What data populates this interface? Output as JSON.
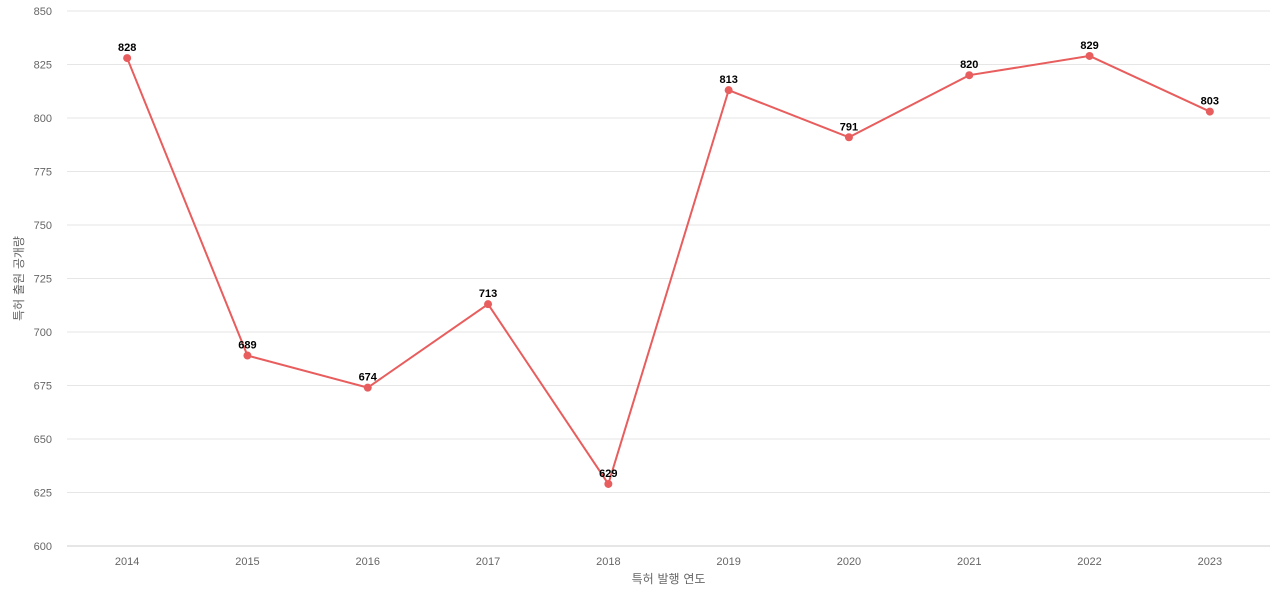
{
  "chart_data": {
    "type": "line",
    "title": "",
    "xlabel": "특허 발행 연도",
    "ylabel": "특허 출원 공개량",
    "categories": [
      "2014",
      "2015",
      "2016",
      "2017",
      "2018",
      "2019",
      "2020",
      "2021",
      "2022",
      "2023"
    ],
    "series": [
      {
        "values": [
          828,
          689,
          674,
          713,
          629,
          813,
          791,
          820,
          829,
          803
        ],
        "color": "#e85d5d"
      }
    ],
    "ylim": [
      600,
      850
    ],
    "yticks": [
      600,
      625,
      650,
      675,
      700,
      725,
      750,
      775,
      800,
      825,
      850
    ],
    "grid": true,
    "data_labels": true,
    "legend": "none"
  }
}
